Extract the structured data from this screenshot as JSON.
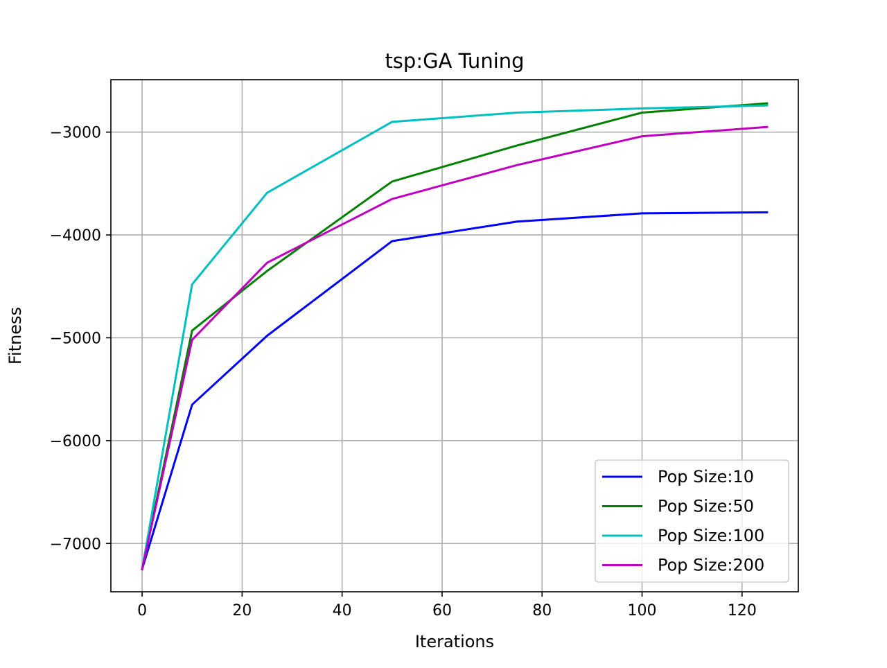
{
  "chart_data": {
    "type": "line",
    "title": "tsp:GA Tuning",
    "xlabel": "Iterations",
    "ylabel": "Fitness",
    "x": [
      0,
      10,
      25,
      50,
      75,
      100,
      125
    ],
    "xlim": [
      -6.25,
      131.25
    ],
    "ylim": [
      -7470,
      -2490
    ],
    "xticks": [
      0,
      20,
      40,
      60,
      80,
      100,
      120
    ],
    "yticks": [
      -7000,
      -6000,
      -5000,
      -4000,
      -3000
    ],
    "xtick_labels": [
      "0",
      "20",
      "40",
      "60",
      "80",
      "100",
      "120"
    ],
    "ytick_labels": [
      "−7000",
      "−6000",
      "−5000",
      "−4000",
      "−3000"
    ],
    "grid": true,
    "legend_position": "lower-right",
    "series": [
      {
        "name": "Pop Size:10",
        "color": "#0000ff",
        "values": [
          -7250,
          -5650,
          -4980,
          -4060,
          -3870,
          -3790,
          -3780
        ]
      },
      {
        "name": "Pop Size:50",
        "color": "#008000",
        "values": [
          -7250,
          -4930,
          -4350,
          -3480,
          -3130,
          -2810,
          -2720
        ]
      },
      {
        "name": "Pop Size:100",
        "color": "#00bfbf",
        "values": [
          -7250,
          -4480,
          -3590,
          -2900,
          -2810,
          -2770,
          -2740
        ]
      },
      {
        "name": "Pop Size:200",
        "color": "#bf00bf",
        "values": [
          -7250,
          -5020,
          -4270,
          -3650,
          -3320,
          -3040,
          -2950
        ]
      }
    ]
  }
}
